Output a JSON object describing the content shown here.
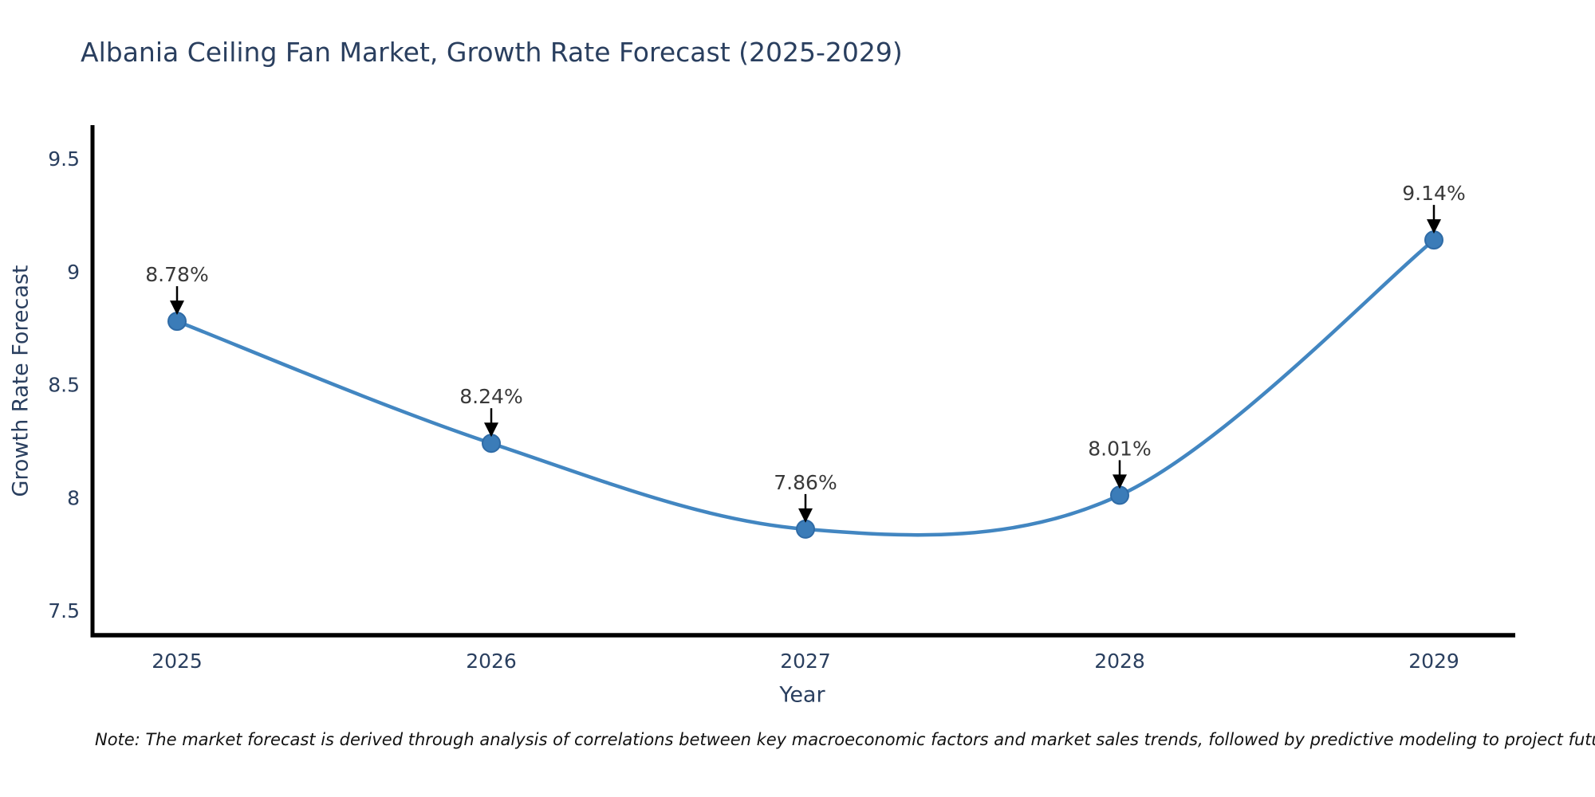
{
  "header": {
    "title": "Albania Ceiling Fan Market, Growth Rate Forecast (2025-2029)"
  },
  "footnote": {
    "text": "Note: The market forecast is derived through analysis of correlations between key macroeconomic factors and market sales trends, followed by predictive modeling to project future sales"
  },
  "colors": {
    "background": "#ffffff",
    "title_text": "#2a3f5f",
    "tick_text": "#2a3f5f",
    "annotation_text": "#393939",
    "line": "#4286c1",
    "marker_fill": "#3b7cb8",
    "marker_edge": "#2f6ba6",
    "axis_line": "#000000",
    "arrow": "#000000"
  },
  "chart_data": {
    "type": "line",
    "title": "Albania Ceiling Fan Market, Growth Rate Forecast (2025-2029)",
    "xlabel": "Year",
    "ylabel": "Growth Rate Forecast",
    "categories": [
      "2025",
      "2026",
      "2027",
      "2028",
      "2029"
    ],
    "series": [
      {
        "name": "Growth Rate Forecast",
        "values": [
          8.78,
          8.24,
          7.86,
          8.01,
          9.14
        ]
      }
    ],
    "point_labels": [
      "8.78%",
      "8.24%",
      "7.86%",
      "8.01%",
      "9.14%"
    ],
    "ytick_values": [
      9.5,
      9,
      8.5,
      8,
      7.5
    ],
    "ytick_labels": [
      "9.5",
      "9",
      "8.5",
      "8",
      "7.5"
    ],
    "ylim": [
      7.4,
      9.65
    ],
    "grid": false,
    "legend_position": "none",
    "curve": "spline",
    "marker": "circle",
    "annotations": "percentage value above each point with downward black arrow"
  }
}
